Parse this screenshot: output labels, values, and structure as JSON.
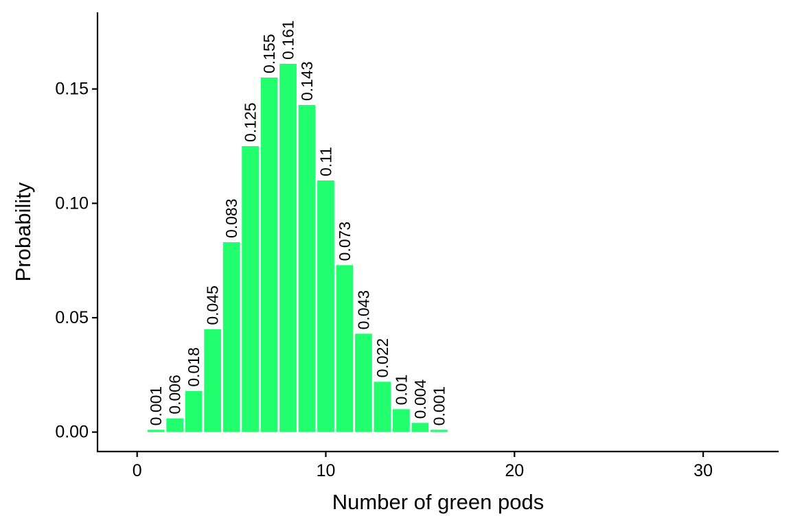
{
  "chart_data": {
    "type": "bar",
    "xlabel": "Number of green pods",
    "ylabel": "Probability",
    "x": [
      1,
      2,
      3,
      4,
      5,
      6,
      7,
      8,
      9,
      10,
      11,
      12,
      13,
      14,
      15,
      16
    ],
    "values": [
      0.001,
      0.006,
      0.018,
      0.045,
      0.083,
      0.125,
      0.155,
      0.161,
      0.143,
      0.11,
      0.073,
      0.043,
      0.022,
      0.01,
      0.004,
      0.001
    ],
    "labels": [
      "0.001",
      "0.006",
      "0.018",
      "0.045",
      "0.083",
      "0.125",
      "0.155",
      "0.161",
      "0.143",
      "0.11",
      "0.073",
      "0.043",
      "0.022",
      "0.01",
      "0.004",
      "0.001"
    ],
    "xlim": [
      -2.1,
      34
    ],
    "ylim": [
      -0.0085,
      0.1835
    ],
    "xticks": [
      0,
      10,
      20,
      30
    ],
    "xtick_labels": [
      "0",
      "10",
      "20",
      "30"
    ],
    "yticks": [
      0,
      0.05,
      0.1,
      0.15
    ],
    "ytick_labels": [
      "0.00",
      "0.05",
      "0.10",
      "0.15"
    ],
    "bar_color": "#21FF6E",
    "grid": false,
    "legend": "none"
  }
}
